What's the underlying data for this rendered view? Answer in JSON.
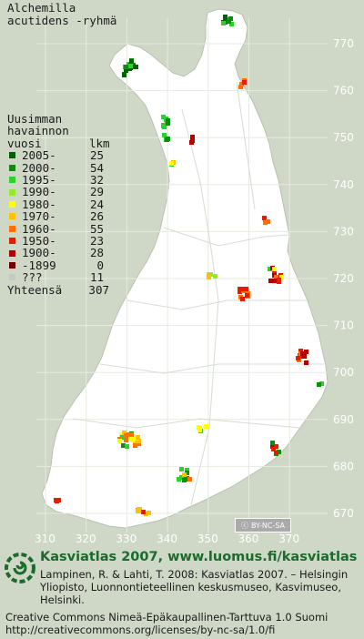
{
  "title": [
    "Alchemilla",
    "acutidens -ryhmä"
  ],
  "legend": {
    "heading": [
      "Uusimman",
      "havainnon",
      "vuosi"
    ],
    "count_heading": "lkm",
    "rows": [
      {
        "label": "2005-",
        "count": "25",
        "color": "#006400"
      },
      {
        "label": "2000-",
        "count": "54",
        "color": "#0a8f0a"
      },
      {
        "label": "1995-",
        "count": "32",
        "color": "#2fcf2f"
      },
      {
        "label": "1990-",
        "count": "29",
        "color": "#99e633"
      },
      {
        "label": "1980-",
        "count": "24",
        "color": "#ffff00"
      },
      {
        "label": "1970-",
        "count": "26",
        "color": "#ffc000"
      },
      {
        "label": "1960-",
        "count": "55",
        "color": "#ff7000"
      },
      {
        "label": "1950-",
        "count": "23",
        "color": "#e61c00"
      },
      {
        "label": "1900-",
        "count": "28",
        "color": "#b40000"
      },
      {
        "label": "-1899",
        "count": "0",
        "color": "#6e0000"
      },
      {
        "label": "???",
        "count": "11",
        "color": "#c8c8c8"
      }
    ],
    "total_label": "Yhteensä",
    "total": "307"
  },
  "axes": {
    "y_ticks": [
      "770",
      "760",
      "750",
      "740",
      "730",
      "720",
      "710",
      "700",
      "690",
      "680",
      "670"
    ],
    "x_ticks": [
      "310",
      "320",
      "330",
      "340",
      "350",
      "360",
      "370"
    ]
  },
  "cc_badge": "BY-NC-SA",
  "footer": {
    "brand": "Kasviatlas 2007, www.luomus.fi/kasviatlas",
    "citation": "Lampinen, R. & Lahti, T. 2008: Kasviatlas 2007. – Helsingin Yliopisto, Luonnontieteellinen keskusmuseo, Kasvimuseo, Helsinki.",
    "license": "Creative Commons Nimeä-Epäkaupallinen-Tarttuva 1.0 Suomi http://creativecommons.org/licenses/by-nc-sa/1.0/fi"
  }
}
